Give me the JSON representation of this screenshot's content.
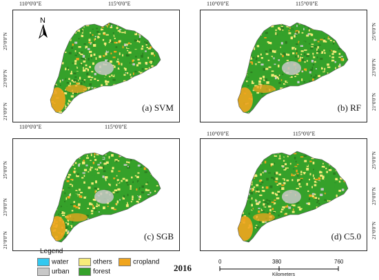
{
  "ticks": {
    "lon_left": "110°0'0\"E",
    "lon_right": "115°0'0\"E",
    "lat_25": "25°0'0\"N",
    "lat_23": "23°0'0\"N",
    "lat_21": "21°0'0\"N"
  },
  "panels": [
    {
      "label": "(a) SVM"
    },
    {
      "label": "(b) RF"
    },
    {
      "label": "(c) SGB"
    },
    {
      "label": "(d) C5.0"
    }
  ],
  "north_label": "N",
  "legend": {
    "title": "Legend",
    "items": [
      {
        "label": "water",
        "color": "#33c8f0"
      },
      {
        "label": "others",
        "color": "#f7ec7a"
      },
      {
        "label": "cropland",
        "color": "#f0a51e"
      },
      {
        "label": "urban",
        "color": "#c8c8c8"
      },
      {
        "label": "forest",
        "color": "#35a12a"
      }
    ]
  },
  "year": "2016",
  "scale_bar": {
    "ticks": [
      "0",
      "380",
      "760"
    ],
    "units": "Kilometers"
  },
  "colors": {
    "forest": "#35a12a",
    "forest_dark": "#2b7d20",
    "others": "#f7ec7a",
    "cropland": "#f0a51e",
    "urban": "#c8c8c8",
    "water": "#33c8f0"
  }
}
